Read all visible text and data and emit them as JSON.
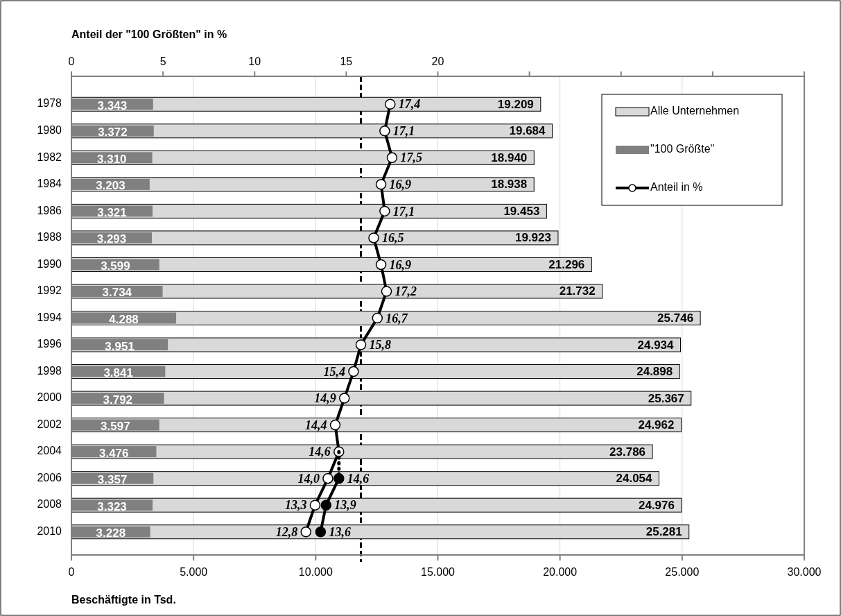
{
  "chart_data": {
    "type": "bar",
    "orientation": "horizontal",
    "title": "Anteil der \"100 Größten\" in %",
    "xlabel": "Beschäftigte in Tsd.",
    "categories": [
      "1978",
      "1980",
      "1982",
      "1984",
      "1986",
      "1988",
      "1990",
      "1992",
      "1994",
      "1996",
      "1998",
      "2000",
      "2002",
      "2004",
      "2006",
      "2008",
      "2010"
    ],
    "series": [
      {
        "name": "Alle Unternehmen",
        "color": "#d9d9d9",
        "values": [
          19209,
          19684,
          18940,
          18938,
          19453,
          19923,
          21296,
          21732,
          25746,
          24934,
          24898,
          25367,
          24962,
          23786,
          24054,
          24976,
          25281
        ],
        "value_labels": [
          "19.209",
          "19.684",
          "18.940",
          "18.938",
          "19.453",
          "19.923",
          "21.296",
          "21.732",
          "25.746",
          "24.934",
          "24.898",
          "25.367",
          "24.962",
          "23.786",
          "24.054",
          "24.976",
          "25.281"
        ]
      },
      {
        "name": "\"100 Größte\"",
        "color": "#808080",
        "values": [
          3343,
          3372,
          3310,
          3203,
          3321,
          3293,
          3599,
          3734,
          4288,
          3951,
          3841,
          3792,
          3597,
          3476,
          3357,
          3323,
          3228
        ],
        "value_labels": [
          "3.343",
          "3.372",
          "3.310",
          "3.203",
          "3.321",
          "3.293",
          "3.599",
          "3.734",
          "4.288",
          "3.951",
          "3.841",
          "3.792",
          "3.597",
          "3.476",
          "3.357",
          "3.323",
          "3.228"
        ]
      },
      {
        "name": "Anteil in %",
        "type": "line",
        "axis": "x2",
        "color": "#000000",
        "marker": "circle",
        "values": [
          17.4,
          17.1,
          17.5,
          16.9,
          17.1,
          16.5,
          16.9,
          17.2,
          16.7,
          15.8,
          15.4,
          14.9,
          14.4,
          14.6,
          14.0,
          13.3,
          12.8
        ],
        "value_labels": [
          "17,4",
          "17,1",
          "17,5",
          "16,9",
          "17,1",
          "16,5",
          "16,9",
          "17,2",
          "16,7",
          "15,8",
          "15,4",
          "14,9",
          "14,4",
          "14,6",
          "14,0",
          "13,3",
          "12,8"
        ]
      },
      {
        "type": "line",
        "axis": "x2",
        "color": "#000000",
        "marker": "circle",
        "values": [
          null,
          null,
          null,
          null,
          null,
          null,
          null,
          null,
          null,
          null,
          null,
          null,
          null,
          null,
          14.6,
          13.9,
          13.6
        ],
        "value_labels": [
          null,
          null,
          null,
          null,
          null,
          null,
          null,
          null,
          null,
          null,
          null,
          null,
          null,
          null,
          "14,6",
          "13,9",
          "13,6"
        ]
      },
      {
        "type": "line",
        "axis": "x2",
        "color": "#000000",
        "marker": "none",
        "line_style": "dotted",
        "values": [
          null,
          null,
          null,
          null,
          null,
          null,
          null,
          null,
          null,
          null,
          null,
          null,
          null,
          14.6,
          14.6,
          null,
          null
        ]
      }
    ],
    "xlim": [
      0,
      30000
    ],
    "xticks": [
      0,
      {
        "value": 5000,
        "label": "5.000"
      },
      {
        "value": 10000,
        "label": "10.000"
      },
      {
        "value": 15000,
        "label": "15.000"
      },
      {
        "value": 20000,
        "label": "20.000"
      },
      {
        "value": 25000,
        "label": "25.000"
      },
      {
        "value": 30000,
        "label": "30.000"
      }
    ],
    "x2lim": [
      0,
      40
    ],
    "x2ticks": [
      0,
      5,
      10,
      15,
      20,
      {
        "value": 25,
        "label": null
      },
      {
        "value": 30,
        "label": null
      },
      {
        "value": 35,
        "label": null
      },
      {
        "value": 40,
        "label": null
      }
    ],
    "ref_lines": [
      {
        "axis": "x2",
        "value": 15.8,
        "line_style": "dashed",
        "color": "#000000"
      }
    ],
    "grid": "x",
    "legend": "top right"
  }
}
